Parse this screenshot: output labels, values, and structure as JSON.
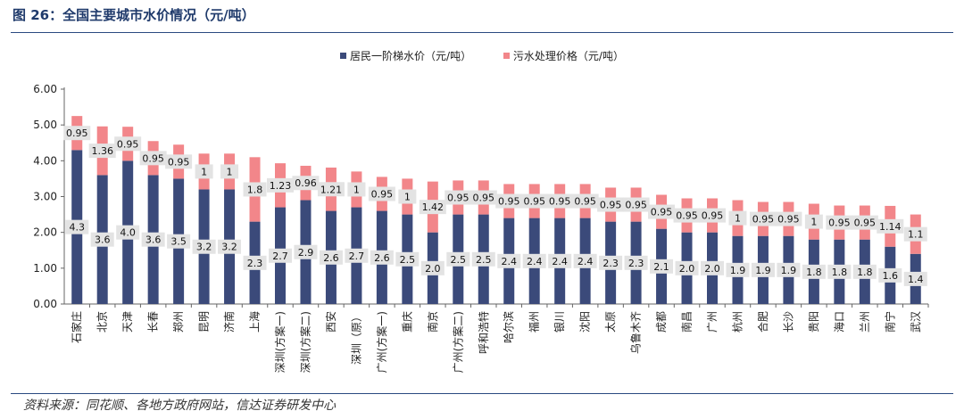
{
  "figure": {
    "title": "图 26：全国主要城市水价情况（元/吨）",
    "source": "资料来源：同花顺、各地方政府网站，信达证券研发中心"
  },
  "chart_data": {
    "type": "bar",
    "stacked": true,
    "categories": [
      "石家庄",
      "北京",
      "天津",
      "长春",
      "郑州",
      "昆明",
      "济南",
      "上海",
      "深圳(方案一)",
      "深圳(方案二)",
      "西安",
      "深圳（原）",
      "广州(方案一)",
      "重庆",
      "南京",
      "广州(方案二)",
      "呼和浩特",
      "哈尔滨",
      "福州",
      "银川",
      "沈阳",
      "太原",
      "乌鲁木齐",
      "成都",
      "南昌",
      "广州",
      "杭州",
      "合肥",
      "长沙",
      "贵阳",
      "海口",
      "兰州",
      "南宁",
      "武汉"
    ],
    "series": [
      {
        "name": "居民一阶梯水价（元/吨）",
        "color": "#3b4a7a",
        "values": [
          4.3,
          3.6,
          4.0,
          3.6,
          3.5,
          3.2,
          3.2,
          2.3,
          2.7,
          2.9,
          2.6,
          2.7,
          2.6,
          2.5,
          2.0,
          2.5,
          2.5,
          2.4,
          2.4,
          2.4,
          2.4,
          2.3,
          2.3,
          2.1,
          2.0,
          2.0,
          1.9,
          1.9,
          1.9,
          1.8,
          1.8,
          1.8,
          1.6,
          1.4
        ],
        "labels": [
          "4.3",
          "3.6",
          "4.0",
          "3.6",
          "3.5",
          "3.2",
          "3.2",
          "2.3",
          "2.7",
          "2.9",
          "2.6",
          "2.7",
          "2.6",
          "2.5",
          "2.0",
          "2.5",
          "2.5",
          "2.4",
          "2.4",
          "2.4",
          "2.4",
          "2.3",
          "2.3",
          "2.1",
          "2.0",
          "2.0",
          "1.9",
          "1.9",
          "1.9",
          "1.8",
          "1.8",
          "1.8",
          "1.6",
          "1.4"
        ]
      },
      {
        "name": "污水处理价格（元/吨）",
        "color": "#f2868a",
        "values": [
          0.95,
          1.36,
          0.95,
          0.95,
          0.95,
          1,
          1,
          1.8,
          1.23,
          0.96,
          1.21,
          1,
          0.95,
          1,
          1.42,
          0.95,
          0.95,
          0.95,
          0.95,
          0.95,
          0.95,
          0.95,
          0.95,
          0.95,
          0.95,
          0.95,
          1,
          0.95,
          0.95,
          1,
          0.95,
          0.95,
          1.14,
          1.1
        ],
        "labels": [
          "0.95",
          "1.36",
          "0.95",
          "0.95",
          "0.95",
          "1",
          "1",
          "1.8",
          "1.23",
          "0.96",
          "1.21",
          "1",
          "0.95",
          "1",
          "1.42",
          "0.95",
          "0.95",
          "0.95",
          "0.95",
          "0.95",
          "0.95",
          "0.95",
          "0.95",
          "0.95",
          "0.95",
          "0.95",
          "1",
          "0.95",
          "0.95",
          "1",
          "0.95",
          "0.95",
          "1.14",
          "1.1"
        ]
      }
    ],
    "ylim": [
      0,
      6
    ],
    "yticks": [
      "0.00",
      "1.00",
      "2.00",
      "3.00",
      "4.00",
      "5.00",
      "6.00"
    ],
    "grid": false,
    "legend_position": "top-center"
  }
}
